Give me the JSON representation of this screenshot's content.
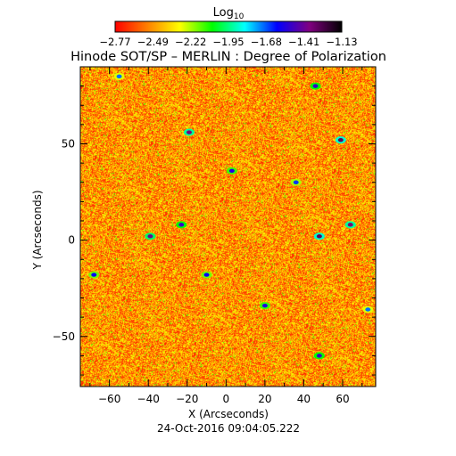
{
  "chart_data": {
    "type": "heatmap",
    "title": "Hinode SOT/SP – MERLIN : Degree of Polarization",
    "xlabel": "X (Arcseconds)",
    "ylabel": "Y (Arcseconds)",
    "xlim": [
      -75,
      77
    ],
    "ylim": [
      -76,
      90
    ],
    "x_ticks": [
      -60,
      -40,
      -20,
      0,
      20,
      40,
      60
    ],
    "y_ticks": [
      -50,
      0,
      50
    ],
    "timestamp": "24-Oct-2016 09:04:05.222",
    "colorbar": {
      "label_base": "Log",
      "label_sub": "10",
      "min": -2.77,
      "max": -1.13,
      "ticks": [
        "−2.77",
        "−2.49",
        "−2.22",
        "−1.95",
        "−1.68",
        "−1.41",
        "−1.13"
      ],
      "colormap": [
        "#ff0000",
        "#ff8000",
        "#ffff00",
        "#00ff00",
        "#00ffff",
        "#0000ff",
        "#800080",
        "#000000"
      ]
    },
    "typical_value": -2.5,
    "grid": false,
    "features": [
      {
        "x": -19,
        "y": 56,
        "value": -1.35
      },
      {
        "x": 59,
        "y": 52,
        "value": -1.3
      },
      {
        "x": 64,
        "y": 8,
        "value": -1.35
      },
      {
        "x": 48,
        "y": 2,
        "value": -1.3
      },
      {
        "x": -39,
        "y": 2,
        "value": -1.4
      },
      {
        "x": -23,
        "y": 8,
        "value": -1.5
      },
      {
        "x": 3,
        "y": 36,
        "value": -1.55
      },
      {
        "x": 46,
        "y": 80,
        "value": -1.5
      },
      {
        "x": -68,
        "y": -18,
        "value": -1.6
      },
      {
        "x": -10,
        "y": -18,
        "value": -1.6
      },
      {
        "x": 20,
        "y": -34,
        "value": -1.55
      },
      {
        "x": 48,
        "y": -60,
        "value": -1.5
      },
      {
        "x": 73,
        "y": -36,
        "value": -1.7
      },
      {
        "x": 36,
        "y": 30,
        "value": -1.65
      },
      {
        "x": -55,
        "y": 85,
        "value": -1.7
      }
    ]
  }
}
